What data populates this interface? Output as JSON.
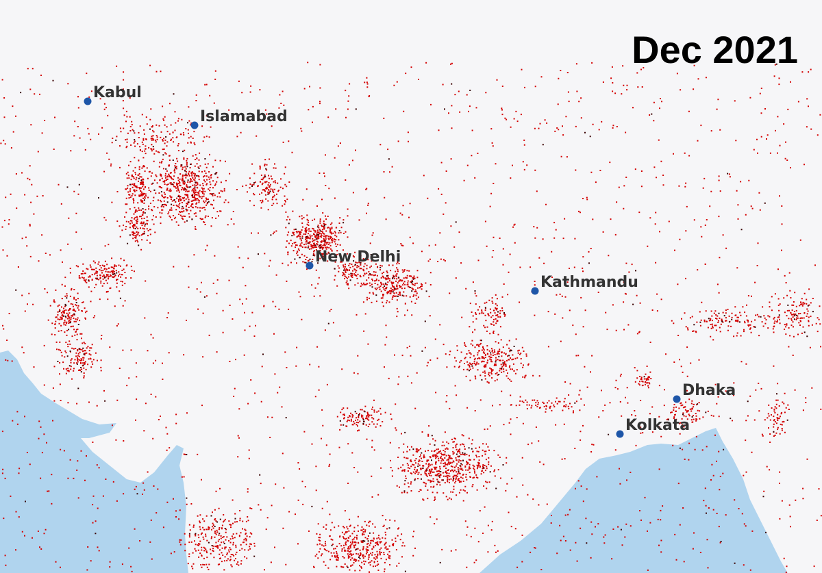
{
  "title": "Dec 2021",
  "cities": [
    {
      "label": "Kabul"
    },
    {
      "label": "Islamabad"
    },
    {
      "label": "New Delhi"
    },
    {
      "label": "Kathmandu"
    },
    {
      "label": "Dhaka"
    },
    {
      "label": "Kolkata"
    }
  ]
}
